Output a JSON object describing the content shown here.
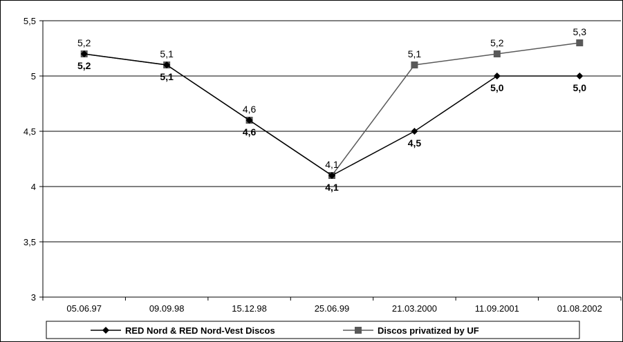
{
  "chart_data": {
    "type": "line",
    "categories": [
      "05.06.97",
      "09.09.98",
      "15.12.98",
      "25.06.99",
      "21.03.2000",
      "11.09.2001",
      "01.08.2002"
    ],
    "ylim": [
      3,
      5.5
    ],
    "yticks": [
      "3",
      "3,5",
      "4",
      "4,5",
      "5",
      "5,5"
    ],
    "ytick_values": [
      3,
      3.5,
      4,
      4.5,
      5,
      5.5
    ],
    "grid": true,
    "legend_position": "bottom",
    "series": [
      {
        "name": "RED Nord & RED Nord-Vest Discos",
        "values": [
          5.2,
          5.1,
          4.6,
          4.1,
          4.5,
          5.0,
          5.0
        ],
        "labels": [
          "5,2",
          "5,1",
          "4,6",
          "4,1",
          "4,5",
          "5,0",
          "5,0"
        ],
        "color": "#000000",
        "marker": "diamond"
      },
      {
        "name": "Discos privatized by UF",
        "values": [
          5.2,
          5.1,
          4.6,
          4.1,
          5.1,
          5.2,
          5.3
        ],
        "labels": [
          "5,2",
          "5,1",
          "4,6",
          "4,1",
          "5,1",
          "5,2",
          "5,3"
        ],
        "color": "#595959",
        "marker": "square"
      }
    ]
  }
}
